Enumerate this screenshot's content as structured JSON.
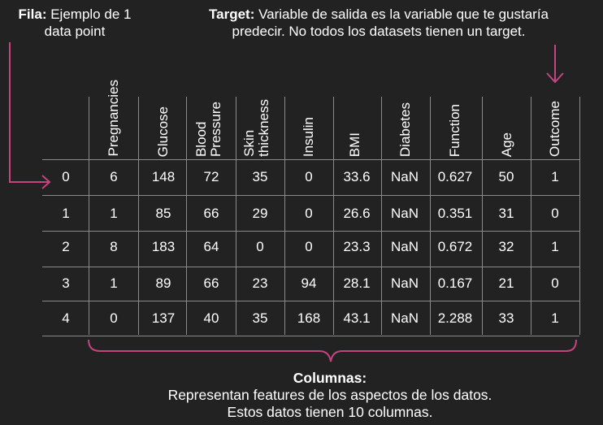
{
  "notes": {
    "fila_label": "Fila:",
    "fila_text_1": " Ejemplo de 1",
    "fila_text_2": "data point",
    "target_label": "Target:",
    "target_text_1": " Variable de salida es la variable que te gustaría",
    "target_text_2": "predecir. No todos los datasets tienen un target.",
    "columnas_label": "Columnas:",
    "columnas_text_1": "Representan features de los aspectos de los datos.",
    "columnas_text_2": "Estos datos tienen 10 columnas."
  },
  "columns": [
    "Pregnancies",
    "Glucose",
    "Blood\nPressure",
    "Skin\nthickness",
    "Insulin",
    "BMI",
    "Diabetes",
    "Function",
    "Age",
    "Outcome"
  ],
  "rows": [
    {
      "index": "0",
      "values": [
        "6",
        "148",
        "72",
        "35",
        "0",
        "33.6",
        "NaN",
        "0.627",
        "50",
        "1"
      ]
    },
    {
      "index": "1",
      "values": [
        "1",
        "85",
        "66",
        "29",
        "0",
        "26.6",
        "NaN",
        "0.351",
        "31",
        "0"
      ]
    },
    {
      "index": "2",
      "values": [
        "8",
        "183",
        "64",
        "0",
        "0",
        "23.3",
        "NaN",
        "0.672",
        "32",
        "1"
      ]
    },
    {
      "index": "3",
      "values": [
        "1",
        "89",
        "66",
        "23",
        "94",
        "28.1",
        "NaN",
        "0.167",
        "21",
        "0"
      ]
    },
    {
      "index": "4",
      "values": [
        "0",
        "137",
        "40",
        "35",
        "168",
        "43.1",
        "NaN",
        "2.288",
        "33",
        "1"
      ]
    }
  ],
  "colors": {
    "accent": "#c2457f",
    "grid": "#8a8a8a",
    "background": "#222222",
    "text": "#ffffff"
  }
}
